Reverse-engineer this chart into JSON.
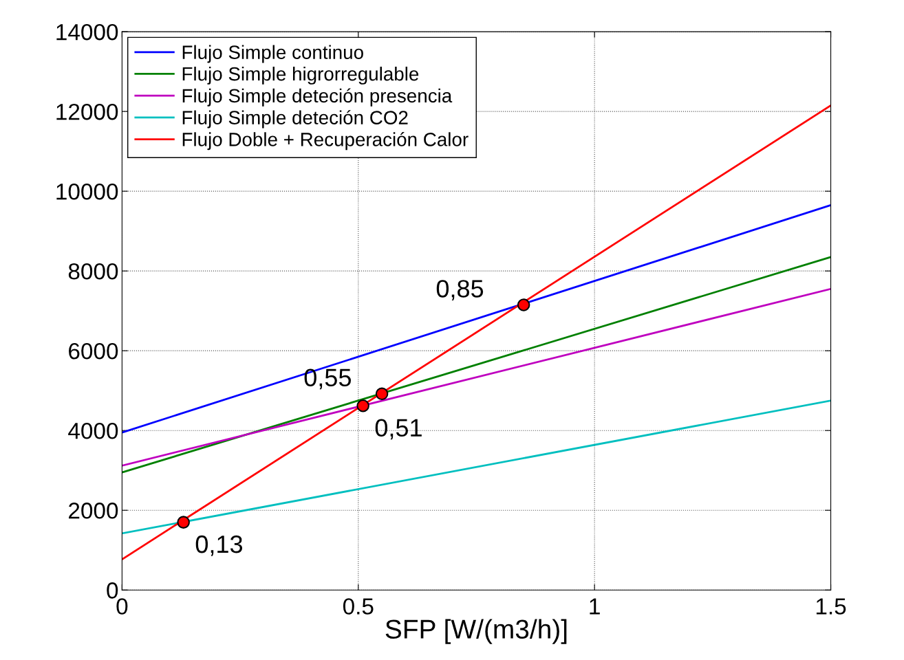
{
  "chart_data": {
    "type": "line",
    "xlabel": "SFP [W/(m3/h)]",
    "x": [
      0,
      1.5
    ],
    "series": [
      {
        "name": "Flujo Simple continuo",
        "color": "#0000ff",
        "values": [
          3950,
          9650
        ]
      },
      {
        "name": "Flujo Simple higrorregulable",
        "color": "#008000",
        "values": [
          2950,
          8350
        ]
      },
      {
        "name": "Flujo Simple deteción presencia",
        "color": "#bf00bf",
        "values": [
          3120,
          7550
        ]
      },
      {
        "name": "Flujo Simple deteción CO2",
        "color": "#00bfbf",
        "values": [
          1420,
          4750
        ]
      },
      {
        "name": "Flujo Doble + Recuperación Calor",
        "color": "#ff0000",
        "values": [
          770,
          12150
        ]
      },
      {
        "type": "scatter",
        "color": "#ff0000",
        "x": [
          0.13,
          0.51,
          0.55,
          0.85
        ],
        "values": [
          1700,
          4620,
          4920,
          7150
        ],
        "marker": "circle"
      }
    ],
    "annotations": [
      {
        "text": "0,13",
        "x": 0.13,
        "y": 1700
      },
      {
        "text": "0,51",
        "x": 0.51,
        "y": 4620
      },
      {
        "text": "0,55",
        "x": 0.55,
        "y": 4920
      },
      {
        "text": "0,85",
        "x": 0.85,
        "y": 7150
      }
    ],
    "xlim": [
      0,
      1.5
    ],
    "xticks": [
      0,
      0.5,
      1,
      1.5
    ],
    "ylim": [
      0,
      14000
    ],
    "yticks": [
      0,
      2000,
      4000,
      6000,
      8000,
      10000,
      12000,
      14000
    ],
    "grid": true,
    "legend": "top left",
    "marker": "none",
    "line_style": "solid"
  }
}
